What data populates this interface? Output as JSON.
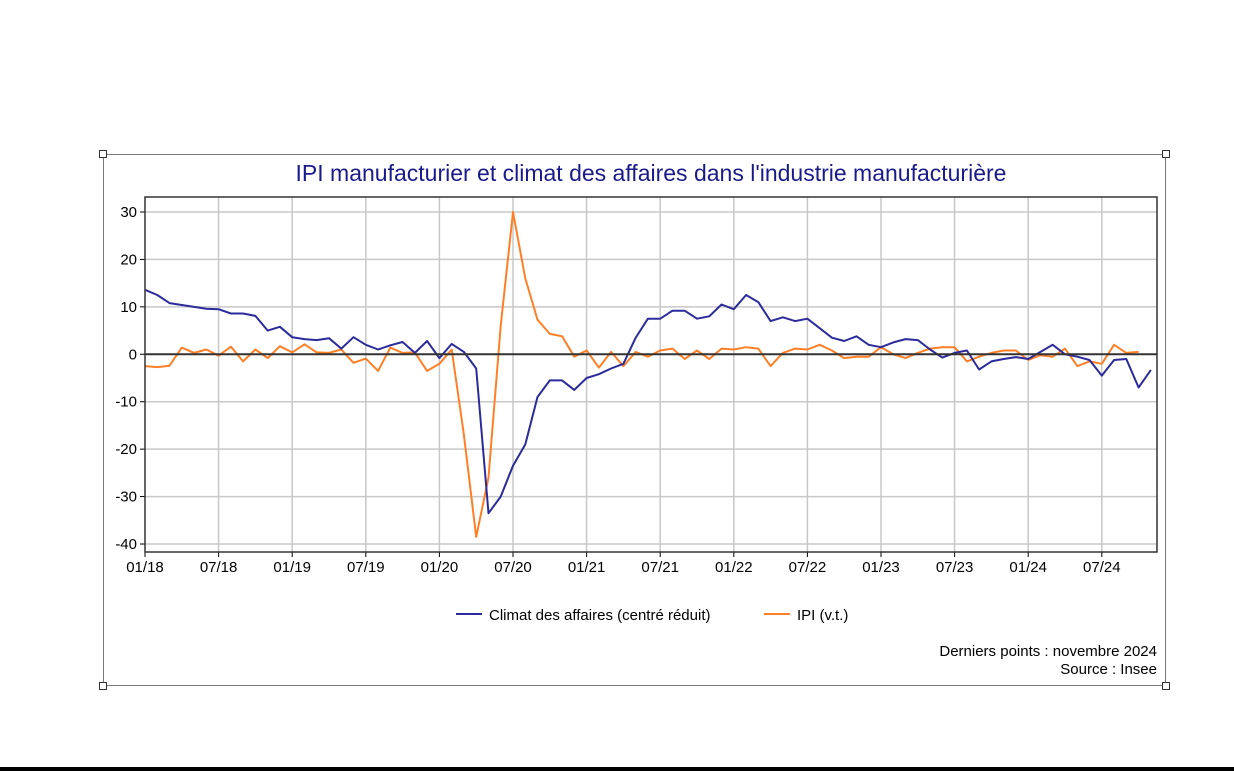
{
  "chart_data": {
    "type": "line",
    "title": "IPI manufacturier et climat des affaires dans l'industrie manufacturière",
    "xlabel": "",
    "ylabel": "",
    "ylim": [
      -40,
      30
    ],
    "yticks": [
      30,
      20,
      10,
      0,
      -10,
      -20,
      -30,
      -40
    ],
    "xticks": [
      "01/18",
      "07/18",
      "01/19",
      "07/19",
      "01/20",
      "07/20",
      "01/21",
      "07/21",
      "01/22",
      "07/22",
      "01/23",
      "07/23",
      "01/24",
      "07/24"
    ],
    "x_start": "01/18",
    "grid": true,
    "legend_position": "bottom",
    "series": [
      {
        "name": "Climat des affaires (centré réduit)",
        "color": "#2b2b9b",
        "start": "01/18",
        "end": "11/24",
        "values": [
          13.6,
          12.5,
          10.8,
          10.4,
          10,
          9.6,
          9.5,
          8.6,
          8.6,
          8.1,
          5.0,
          5.8,
          3.6,
          3.2,
          3.0,
          3.4,
          1.2,
          3.6,
          2.0,
          1.0,
          1.9,
          2.6,
          0.3,
          2.8,
          -0.8,
          2.2,
          0.5,
          -3.0,
          -33.5,
          -30.0,
          -23.5,
          -19.0,
          -9.0,
          -5.5,
          -5.5,
          -7.5,
          -5.0,
          -4.2,
          -3.0,
          -2.0,
          3.5,
          7.5,
          7.5,
          9.2,
          9.2,
          7.5,
          8.0,
          10.5,
          9.5,
          12.5,
          11.0,
          7.0,
          7.8,
          7.0,
          7.5,
          5.5,
          3.5,
          2.8,
          3.8,
          2.0,
          1.5,
          2.5,
          3.2,
          3.0,
          1.0,
          -0.7,
          0.3,
          0.8,
          -3.2,
          -1.5,
          -1.0,
          -0.6,
          -1.0,
          0.5,
          2.0,
          0.0,
          -0.5,
          -1.2,
          -4.5,
          -1.2,
          -1.0,
          -7.0,
          -3.3
        ]
      },
      {
        "name": "IPI (v.t.)",
        "color": "#ff7f27",
        "start": "01/18",
        "end": "10/24",
        "values": [
          -2.5,
          -2.7,
          -2.4,
          1.4,
          0.3,
          1.0,
          -0.3,
          1.6,
          -1.5,
          1.0,
          -0.8,
          1.7,
          0.4,
          2.1,
          0.4,
          0.3,
          1.0,
          -1.8,
          -0.9,
          -3.5,
          1.4,
          0.3,
          0.4,
          -3.5,
          -2.0,
          1.0,
          -17,
          -38.5,
          -26,
          6,
          30,
          16,
          7.3,
          4.3,
          3.8,
          -0.5,
          0.8,
          -2.8,
          0.5,
          -2.5,
          0.5,
          -0.5,
          0.8,
          1.2,
          -1.0,
          0.8,
          -1.0,
          1.2,
          1.0,
          1.5,
          1.2,
          -2.5,
          0.3,
          1.2,
          1.0,
          2.0,
          0.8,
          -0.8,
          -0.5,
          -0.5,
          1.5,
          0.0,
          -0.8,
          0.3,
          1.2,
          1.5,
          1.5,
          -1.5,
          -0.5,
          0.3,
          0.8,
          0.8,
          -1.2,
          -0.2,
          -0.5,
          1.2,
          -2.5,
          -1.5,
          -2.0,
          2.0,
          0.3,
          0.5
        ]
      }
    ],
    "notes": [
      "Derniers points : novembre 2024",
      "Source : Insee"
    ]
  }
}
